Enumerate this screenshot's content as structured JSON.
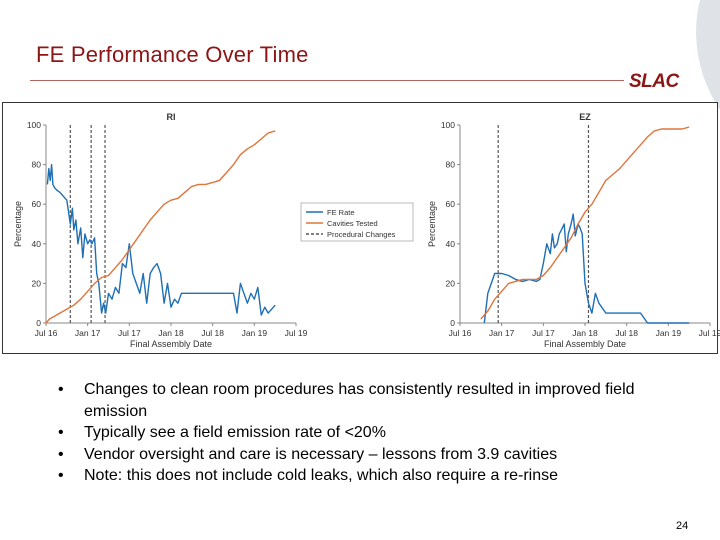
{
  "slide": {
    "title": "FE Performance Over Time",
    "logo_text": "SLAC",
    "page_number": "24",
    "colors": {
      "title": "#8c1515",
      "rule": "#b0655f",
      "fe": "#1f6fb5",
      "cavities": "#e0743a",
      "procedural": "#555555"
    }
  },
  "bullets": [
    "Changes to clean room procedures has consistently resulted in improved field emission",
    "Typically see a field emission rate of <20%",
    "Vendor oversight and care is necessary – lessons from 3.9 cavities",
    "Note: this does not include cold leaks, which also require a re-rinse"
  ],
  "bullet_glyph": "•",
  "chart_data": [
    {
      "type": "line",
      "title": "RI",
      "xlabel": "Final Assembly Date",
      "ylabel": "Percentage",
      "xticks": [
        "Jul 16",
        "Jan 17",
        "Jul 17",
        "Jan 18",
        "Jul 18",
        "Jan 19",
        "Jul 19"
      ],
      "xlim": [
        0,
        36
      ],
      "ylim": [
        0,
        100
      ],
      "yticks": [
        0,
        20,
        40,
        60,
        80,
        100
      ],
      "legend": [
        "FE Rate",
        "Cavities Tested",
        "Procedural Changes"
      ],
      "legend_position": "right",
      "procedural_changes": [
        3.5,
        6.5,
        8.5
      ],
      "series": [
        {
          "name": "FE Rate",
          "x": [
            0.2,
            0.4,
            0.6,
            0.8,
            1.0,
            1.3,
            1.6,
            2.0,
            2.5,
            3.0,
            3.5,
            3.8,
            4.0,
            4.3,
            4.6,
            5.0,
            5.3,
            5.6,
            6.0,
            6.3,
            6.6,
            7.0,
            7.3,
            7.6,
            8.0,
            8.3,
            8.6,
            9.0,
            9.5,
            10.0,
            10.5,
            11.0,
            11.5,
            12.0,
            12.5,
            13.0,
            13.5,
            14.0,
            14.5,
            15.0,
            15.5,
            16.0,
            16.5,
            17.0,
            17.5,
            18.0,
            18.5,
            19.0,
            19.5,
            20.0,
            21.0,
            22.0,
            23.0,
            24.0,
            25.0,
            26.0,
            27.0,
            27.5,
            28.0,
            28.5,
            29.0,
            29.5,
            30.0,
            30.5,
            31.0,
            31.5,
            32.0,
            32.5,
            33.0
          ],
          "values": [
            70,
            78,
            72,
            80,
            70,
            68,
            67,
            66,
            64,
            62,
            50,
            58,
            47,
            52,
            40,
            48,
            33,
            45,
            40,
            42,
            40,
            43,
            25,
            20,
            5,
            10,
            5,
            15,
            12,
            18,
            15,
            30,
            28,
            40,
            25,
            20,
            15,
            25,
            10,
            25,
            28,
            30,
            25,
            10,
            20,
            8,
            12,
            10,
            15,
            15,
            15,
            15,
            15,
            15,
            15,
            15,
            15,
            5,
            20,
            15,
            10,
            15,
            12,
            18,
            4,
            8,
            5,
            7,
            9
          ]
        },
        {
          "name": "Cavities Tested",
          "x": [
            0,
            0.5,
            1,
            2,
            3,
            4,
            5,
            6,
            7,
            8,
            9,
            10,
            11,
            12,
            13,
            14,
            15,
            16,
            17,
            18,
            19,
            20,
            21,
            22,
            23,
            24,
            25,
            26,
            27,
            28,
            29,
            30,
            31,
            32,
            33
          ],
          "values": [
            0,
            2,
            3,
            5,
            7,
            9,
            12,
            16,
            20,
            23,
            24,
            28,
            32,
            37,
            42,
            47,
            52,
            56,
            60,
            62,
            63,
            66,
            69,
            70,
            70,
            71,
            72,
            76,
            80,
            85,
            88,
            90,
            93,
            96,
            97
          ]
        }
      ]
    },
    {
      "type": "line",
      "title": "EZ",
      "xlabel": "Final Assembly Date",
      "ylabel": "Percentage",
      "xticks": [
        "Jul 16",
        "Jan 17",
        "Jul 17",
        "Jan 18",
        "Jul 18",
        "Jan 19",
        "Jul 19"
      ],
      "xlim": [
        0,
        36
      ],
      "ylim": [
        0,
        100
      ],
      "yticks": [
        0,
        20,
        40,
        60,
        80,
        100
      ],
      "legend": [],
      "procedural_changes": [
        5.5,
        18.5
      ],
      "series": [
        {
          "name": "FE Rate",
          "x": [
            3.5,
            4.0,
            4.5,
            5.0,
            5.5,
            6.0,
            7.0,
            8.0,
            9.0,
            10.0,
            11.0,
            11.5,
            12.0,
            12.5,
            13.0,
            13.3,
            13.6,
            14.0,
            14.3,
            14.6,
            15.0,
            15.3,
            15.6,
            16.0,
            16.3,
            16.6,
            17.0,
            17.3,
            17.6,
            18.0,
            18.5,
            19.0,
            19.5,
            20.0,
            21.0,
            22.0,
            23.0,
            24.0,
            25.0,
            26.0,
            27.0,
            28.0,
            29.0,
            30.0,
            31.0,
            32.0,
            33.0
          ],
          "values": [
            0,
            15,
            20,
            25,
            25,
            25,
            24,
            22,
            21,
            22,
            21,
            22,
            30,
            40,
            35,
            45,
            38,
            40,
            45,
            47,
            50,
            36,
            45,
            50,
            55,
            44,
            50,
            48,
            45,
            20,
            10,
            5,
            15,
            10,
            5,
            5,
            5,
            5,
            5,
            5,
            0,
            0,
            0,
            0,
            0,
            0,
            0
          ]
        },
        {
          "name": "Cavities Tested",
          "x": [
            3,
            4,
            5,
            6,
            7,
            8,
            9,
            10,
            11,
            12,
            13,
            14,
            15,
            16,
            17,
            18,
            19,
            20,
            21,
            22,
            23,
            24,
            25,
            26,
            27,
            28,
            29,
            30,
            31,
            32,
            33
          ],
          "values": [
            2,
            6,
            12,
            16,
            20,
            21,
            22,
            22,
            22,
            24,
            28,
            33,
            38,
            43,
            50,
            56,
            60,
            66,
            72,
            75,
            78,
            82,
            86,
            90,
            94,
            97,
            98,
            98,
            98,
            98,
            99
          ]
        }
      ]
    }
  ]
}
